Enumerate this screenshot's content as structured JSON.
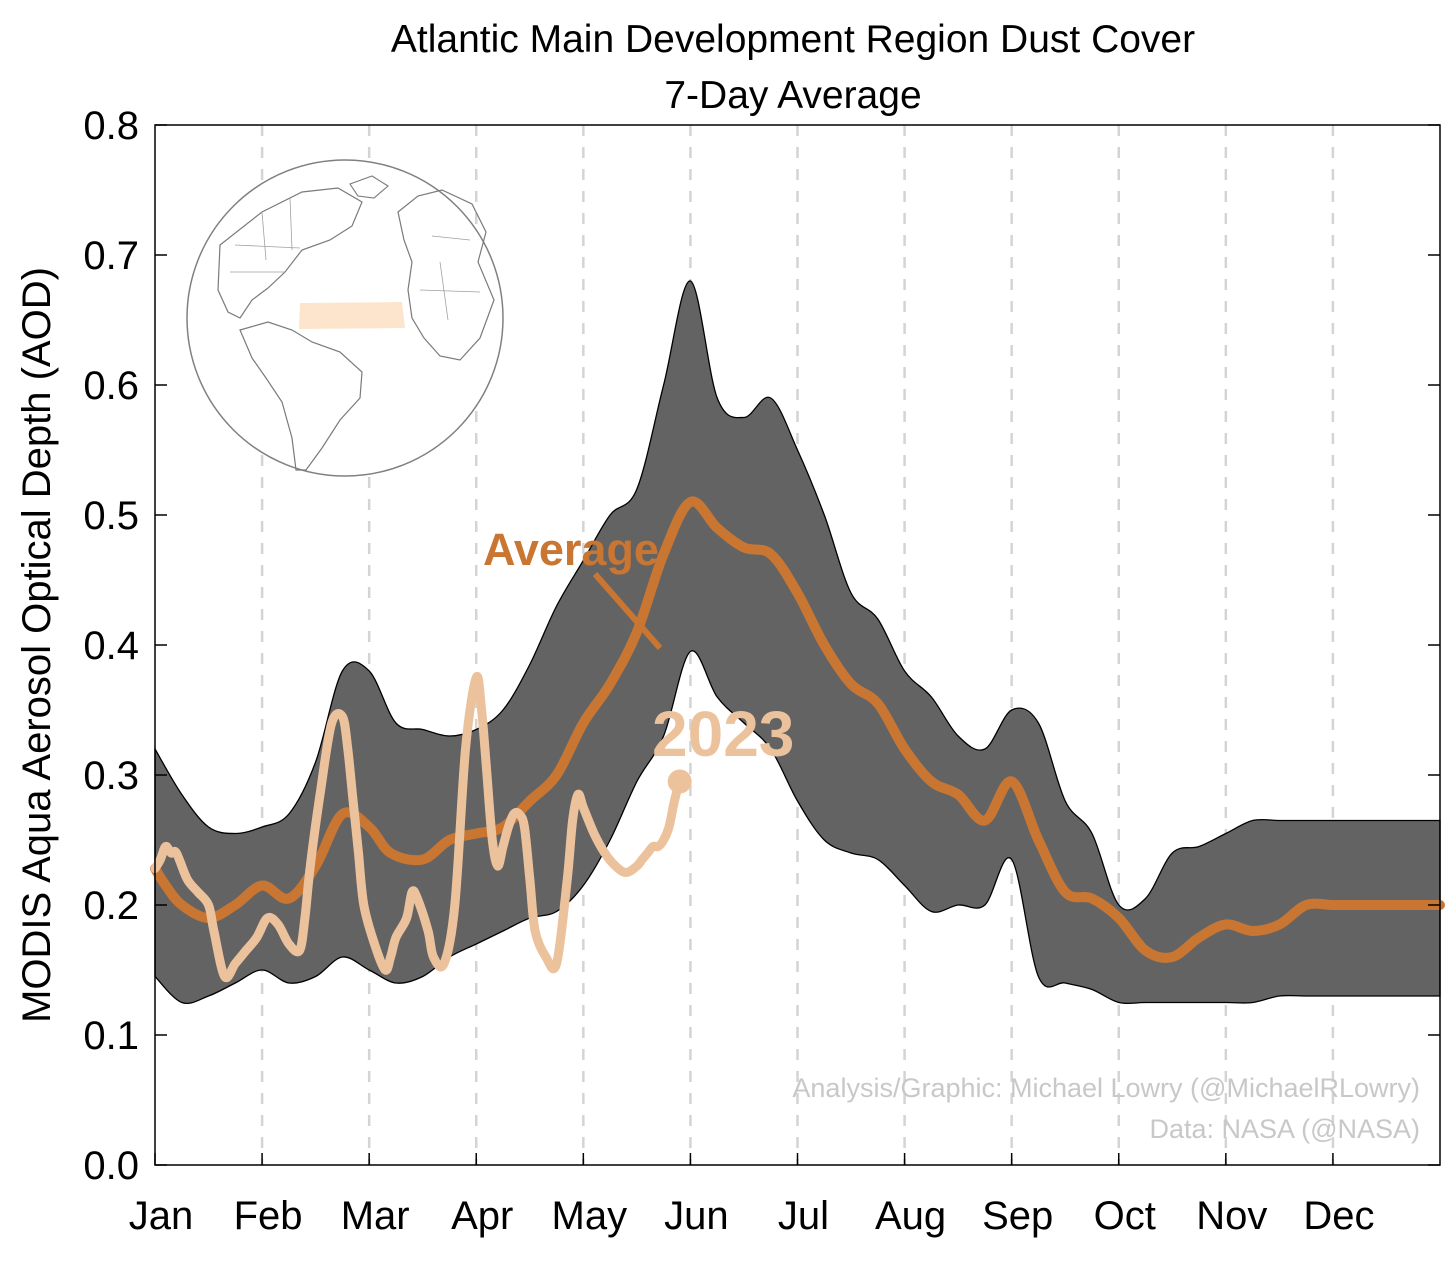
{
  "chart_data": {
    "type": "area",
    "title": "Atlantic Main Development Region Dust Cover",
    "subtitle": "7-Day Average",
    "ylabel": "MODIS Aqua Aerosol Optical Depth (AOD)",
    "xlabel": "",
    "categories": [
      "Jan",
      "Feb",
      "Mar",
      "Apr",
      "May",
      "Jun",
      "Jul",
      "Aug",
      "Sep",
      "Oct",
      "Nov",
      "Dec"
    ],
    "xlim": [
      0,
      12
    ],
    "ylim": [
      0,
      0.8
    ],
    "yticks": [
      "0.0",
      "0.1",
      "0.2",
      "0.3",
      "0.4",
      "0.5",
      "0.6",
      "0.7",
      "0.8"
    ],
    "vgrid": "dashed",
    "colors": {
      "band": "#636363",
      "average": "#c97633",
      "year2023": "#ecc29c",
      "region": "#fde5cd",
      "credit": "#c8c8c8"
    },
    "series": [
      {
        "name": "Average",
        "x": [
          0,
          0.1,
          0.25,
          0.5,
          0.75,
          1,
          1.25,
          1.5,
          1.75,
          2,
          2.2,
          2.5,
          2.75,
          3,
          3.25,
          3.5,
          3.75,
          4,
          4.25,
          4.5,
          4.75,
          5,
          5.25,
          5.5,
          5.75,
          6,
          6.25,
          6.5,
          6.75,
          7,
          7.25,
          7.5,
          7.75,
          8,
          8.25,
          8.5,
          8.75,
          9,
          9.25,
          9.5,
          9.75,
          10,
          10.25,
          10.5,
          10.75,
          11,
          11.25,
          11.5,
          11.75,
          12
        ],
        "values": [
          0.228,
          0.215,
          0.2,
          0.19,
          0.2,
          0.215,
          0.205,
          0.23,
          0.27,
          0.26,
          0.24,
          0.235,
          0.25,
          0.255,
          0.26,
          0.28,
          0.3,
          0.34,
          0.37,
          0.41,
          0.47,
          0.51,
          0.49,
          0.475,
          0.47,
          0.44,
          0.4,
          0.37,
          0.355,
          0.32,
          0.295,
          0.285,
          0.265,
          0.295,
          0.25,
          0.21,
          0.205,
          0.19,
          0.165,
          0.16,
          0.175,
          0.185,
          0.18,
          0.185,
          0.2,
          0.2,
          0.2,
          0.2,
          0.2,
          0.2
        ]
      },
      {
        "name": "2023",
        "x": [
          0,
          0.05,
          0.1,
          0.15,
          0.2,
          0.3,
          0.4,
          0.5,
          0.55,
          0.65,
          0.75,
          0.85,
          0.95,
          1.05,
          1.15,
          1.25,
          1.35,
          1.4,
          1.45,
          1.55,
          1.65,
          1.75,
          1.8,
          1.85,
          1.9,
          1.95,
          2.05,
          2.15,
          2.2,
          2.25,
          2.35,
          2.4,
          2.45,
          2.55,
          2.6,
          2.7,
          2.8,
          2.9,
          3,
          3.05,
          3.1,
          3.15,
          3.2,
          3.25,
          3.3,
          3.35,
          3.4,
          3.45,
          3.5,
          3.55,
          3.65,
          3.75,
          3.85,
          3.9,
          3.95,
          4,
          4.1,
          4.2,
          4.3,
          4.4,
          4.5,
          4.55,
          4.6,
          4.65,
          4.7,
          4.75,
          4.8,
          4.85,
          4.9
        ],
        "values": [
          0.228,
          0.235,
          0.245,
          0.24,
          0.24,
          0.22,
          0.21,
          0.2,
          0.18,
          0.145,
          0.155,
          0.165,
          0.175,
          0.19,
          0.185,
          0.17,
          0.165,
          0.19,
          0.23,
          0.29,
          0.34,
          0.345,
          0.32,
          0.28,
          0.24,
          0.2,
          0.17,
          0.15,
          0.16,
          0.175,
          0.19,
          0.21,
          0.205,
          0.18,
          0.16,
          0.155,
          0.2,
          0.32,
          0.375,
          0.35,
          0.3,
          0.25,
          0.23,
          0.245,
          0.26,
          0.27,
          0.27,
          0.26,
          0.22,
          0.18,
          0.16,
          0.155,
          0.22,
          0.265,
          0.285,
          0.275,
          0.255,
          0.24,
          0.23,
          0.225,
          0.23,
          0.235,
          0.24,
          0.245,
          0.245,
          0.25,
          0.26,
          0.28,
          0.295
        ]
      }
    ],
    "band": {
      "x": [
        0,
        0.25,
        0.5,
        0.75,
        1,
        1.25,
        1.5,
        1.75,
        2,
        2.25,
        2.5,
        2.75,
        3,
        3.25,
        3.5,
        3.75,
        4,
        4.25,
        4.5,
        4.75,
        5,
        5.25,
        5.5,
        5.75,
        6,
        6.25,
        6.5,
        6.75,
        7,
        7.25,
        7.5,
        7.75,
        8,
        8.25,
        8.5,
        8.75,
        9,
        9.25,
        9.5,
        9.75,
        10,
        10.25,
        10.5,
        10.75,
        11,
        11.25,
        11.5,
        11.75,
        12
      ],
      "upper": [
        0.32,
        0.285,
        0.26,
        0.255,
        0.26,
        0.27,
        0.31,
        0.38,
        0.38,
        0.34,
        0.335,
        0.33,
        0.335,
        0.35,
        0.385,
        0.43,
        0.465,
        0.5,
        0.52,
        0.6,
        0.68,
        0.59,
        0.575,
        0.59,
        0.55,
        0.5,
        0.44,
        0.42,
        0.38,
        0.36,
        0.33,
        0.32,
        0.35,
        0.34,
        0.28,
        0.255,
        0.2,
        0.205,
        0.24,
        0.245,
        0.255,
        0.265,
        0.265,
        0.265,
        0.265,
        0.265,
        0.265,
        0.265,
        0.265
      ],
      "lower": [
        0.145,
        0.125,
        0.13,
        0.14,
        0.15,
        0.14,
        0.145,
        0.16,
        0.15,
        0.14,
        0.145,
        0.16,
        0.17,
        0.18,
        0.19,
        0.195,
        0.215,
        0.25,
        0.295,
        0.33,
        0.395,
        0.36,
        0.34,
        0.32,
        0.28,
        0.25,
        0.24,
        0.235,
        0.215,
        0.195,
        0.2,
        0.2,
        0.235,
        0.145,
        0.14,
        0.135,
        0.125,
        0.125,
        0.125,
        0.125,
        0.125,
        0.125,
        0.13,
        0.13,
        0.13,
        0.13,
        0.13,
        0.13,
        0.13
      ]
    },
    "annotations": {
      "average_label": "Average",
      "year_label": "2023",
      "credit_line1": "Analysis/Graphic: Michael Lowry (@MichaelRLowry)",
      "credit_line2": "Data: NASA (@NASA)"
    },
    "inset": "globe-map-icon"
  }
}
